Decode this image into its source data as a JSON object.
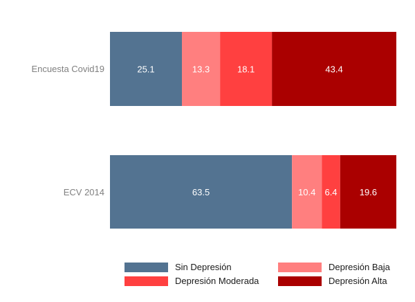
{
  "chart_data": {
    "type": "bar",
    "orientation": "horizontal",
    "stacked": true,
    "title": "",
    "xlabel": "",
    "ylabel": "",
    "xlim": [
      0,
      100
    ],
    "grid": false,
    "categories": [
      "Encuesta Covid19",
      "ECV 2014"
    ],
    "series": [
      {
        "name": "Sin Depresión",
        "color": "#537391",
        "values": [
          25.1,
          63.5
        ]
      },
      {
        "name": "Depresión Baja",
        "color": "#ff7f7f",
        "values": [
          13.3,
          10.4
        ]
      },
      {
        "name": "Depresión Moderada",
        "color": "#ff4040",
        "values": [
          18.1,
          6.4
        ]
      },
      {
        "name": "Depresión Alta",
        "color": "#aa0000",
        "values": [
          43.4,
          19.6
        ]
      }
    ],
    "data_labels": [
      [
        "25.1",
        "13.3",
        "18.1",
        "43.4"
      ],
      [
        "63.5",
        "10.4",
        "6.4",
        "19.6"
      ]
    ],
    "legend_position": "bottom",
    "legend": [
      {
        "label": "Sin Depresión",
        "color": "#537391"
      },
      {
        "label": "Depresión Baja",
        "color": "#ff7f7f"
      },
      {
        "label": "Depresión Moderada",
        "color": "#ff4040"
      },
      {
        "label": "Depresión Alta",
        "color": "#aa0000"
      }
    ]
  }
}
